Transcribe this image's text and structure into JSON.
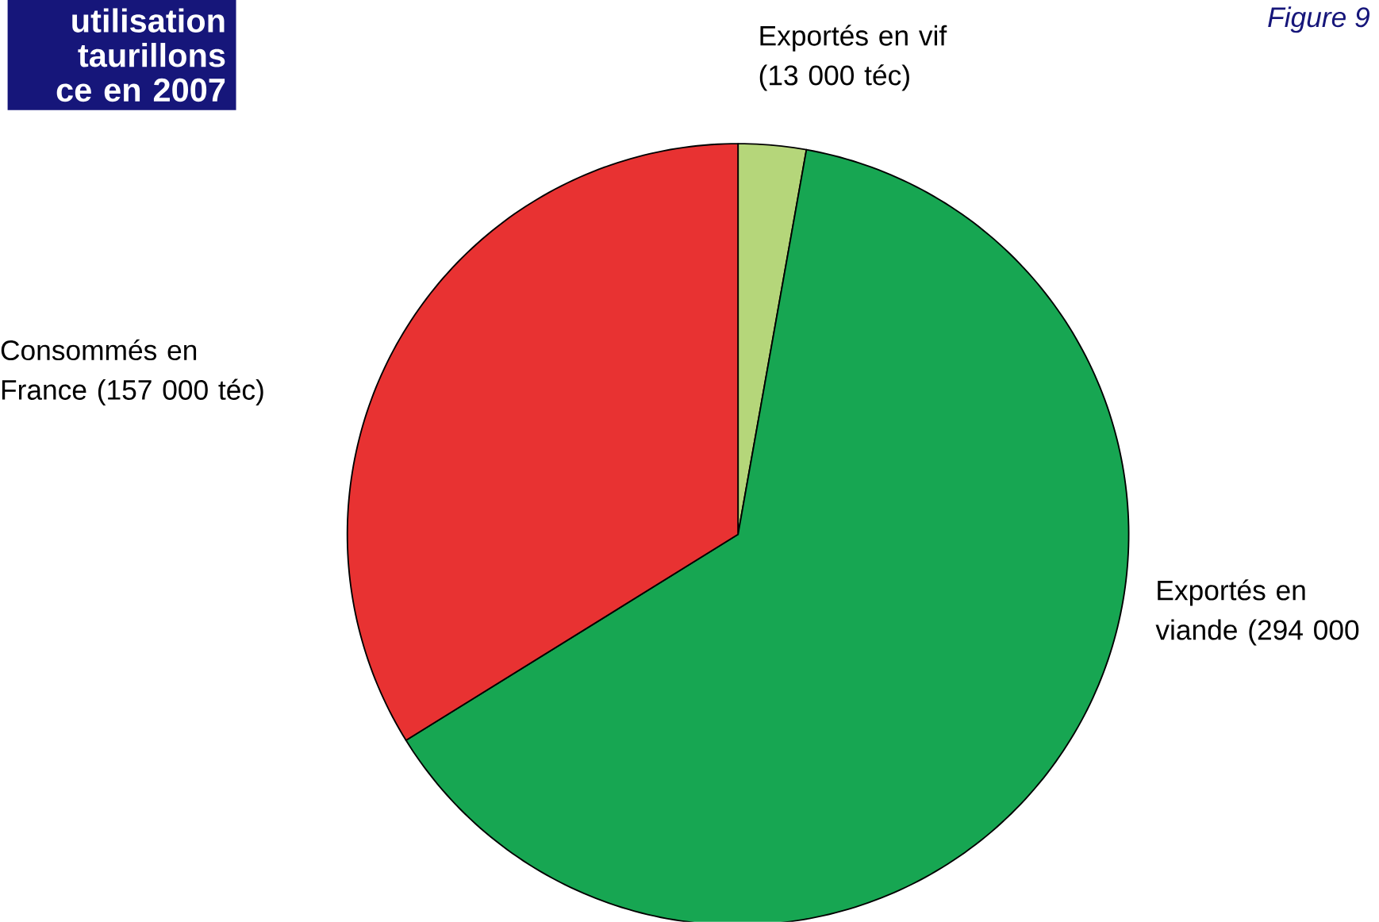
{
  "chart_data": {
    "type": "pie",
    "title": "utilisation taurillons ce en 2007",
    "categories": [
      "Exportés en vif (13 000 téc)",
      "Exportés en viande (294 000",
      "Consommés en France (157 000 téc)"
    ],
    "values": [
      13000,
      294000,
      157000
    ],
    "colors": [
      "#b5d67a",
      "#17a652",
      "#e83232"
    ],
    "annotations": [
      "Figure 9"
    ]
  }
}
